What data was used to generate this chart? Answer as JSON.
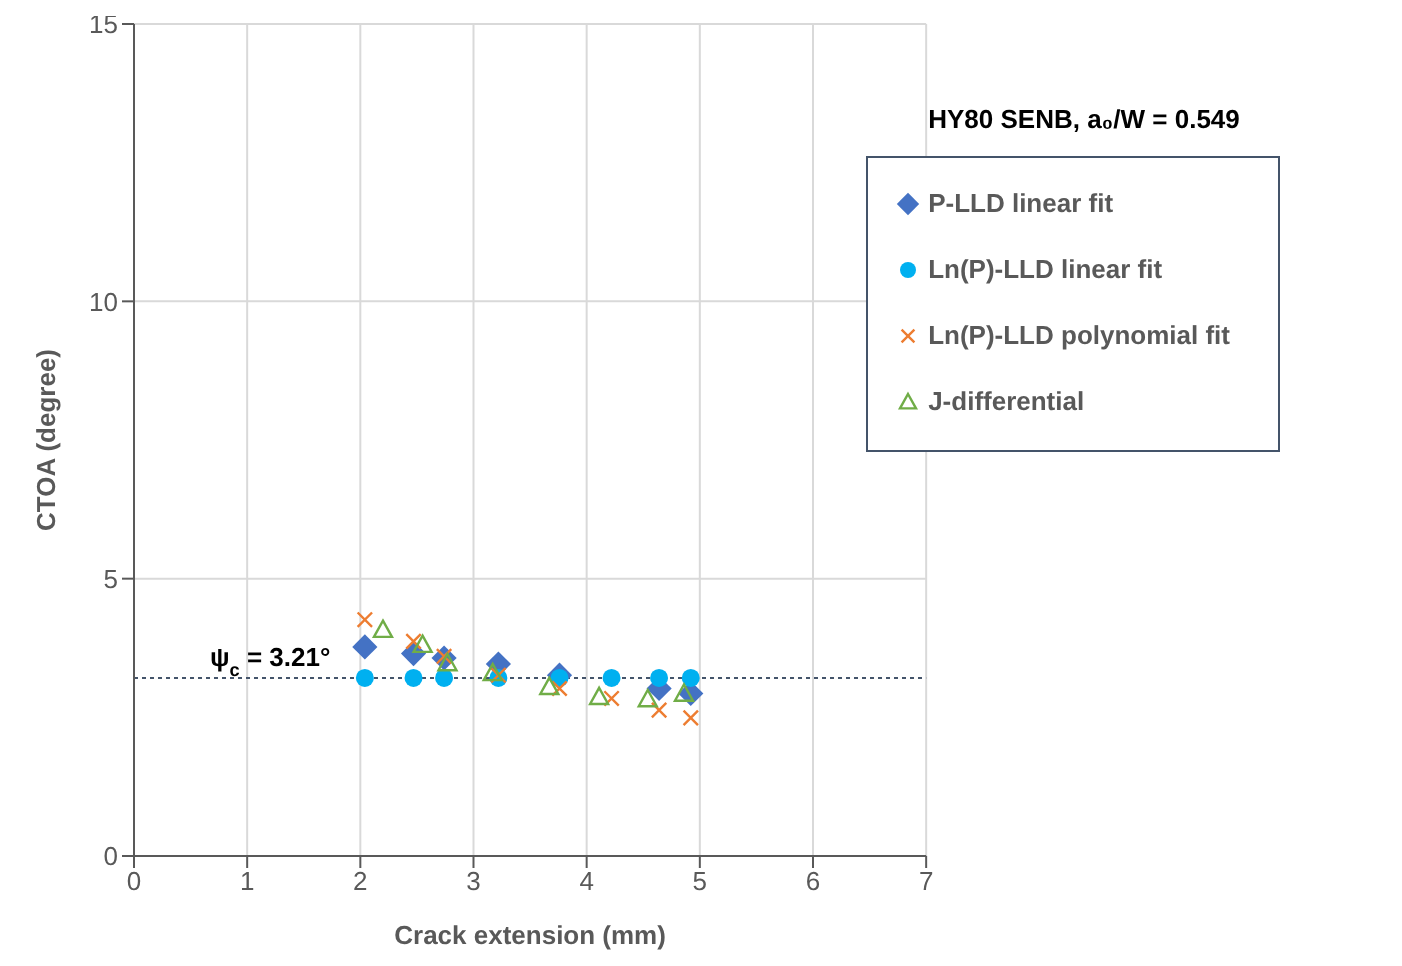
{
  "chart_data": {
    "type": "scatter",
    "title": "HY80 SENB, a₀/W = 0.549",
    "xlabel": "Crack extension (mm)",
    "ylabel": "CTOA (degree)",
    "xlim": [
      0,
      7
    ],
    "xticks": [
      0,
      1,
      2,
      3,
      4,
      5,
      6,
      7
    ],
    "ylim": [
      0,
      15
    ],
    "yticks": [
      0,
      5,
      10,
      15
    ],
    "grid": true,
    "legend": "top right",
    "series": [
      {
        "name": "P-LLD linear fit",
        "color": "#4472c4",
        "marker": "diamond",
        "x": [
          2.04,
          2.47,
          2.74,
          3.22,
          3.76,
          4.64,
          4.92
        ],
        "values": [
          3.77,
          3.65,
          3.57,
          3.46,
          3.26,
          3.02,
          2.93
        ]
      },
      {
        "name": "Ln(P)-LLD linear fit",
        "color": "#00b0f0",
        "marker": "circle",
        "x": [
          2.04,
          2.47,
          2.74,
          3.22,
          3.76,
          4.22,
          4.64,
          4.92
        ],
        "values": [
          3.21,
          3.21,
          3.21,
          3.21,
          3.21,
          3.21,
          3.21,
          3.21
        ]
      },
      {
        "name": "Ln(P)-LLD polynomial fit",
        "color": "#ed7d31",
        "marker": "cross",
        "x": [
          2.04,
          2.47,
          2.74,
          3.22,
          3.76,
          4.22,
          4.64,
          4.92
        ],
        "values": [
          4.26,
          3.87,
          3.6,
          3.26,
          3.02,
          2.84,
          2.63,
          2.49
        ]
      },
      {
        "name": "J-differential",
        "color": "#70ad47",
        "marker": "triangle",
        "x": [
          2.2,
          2.55,
          2.77,
          3.17,
          3.67,
          4.11,
          4.54,
          4.86
        ],
        "values": [
          4.08,
          3.81,
          3.48,
          3.3,
          3.05,
          2.87,
          2.83,
          2.93
        ]
      }
    ],
    "ref_lines": [
      {
        "axis": "y",
        "value": 3.21,
        "label": "ψ$_{c}$ = 3.21°",
        "color": "#44546a",
        "line_style": "dotted"
      }
    ]
  }
}
